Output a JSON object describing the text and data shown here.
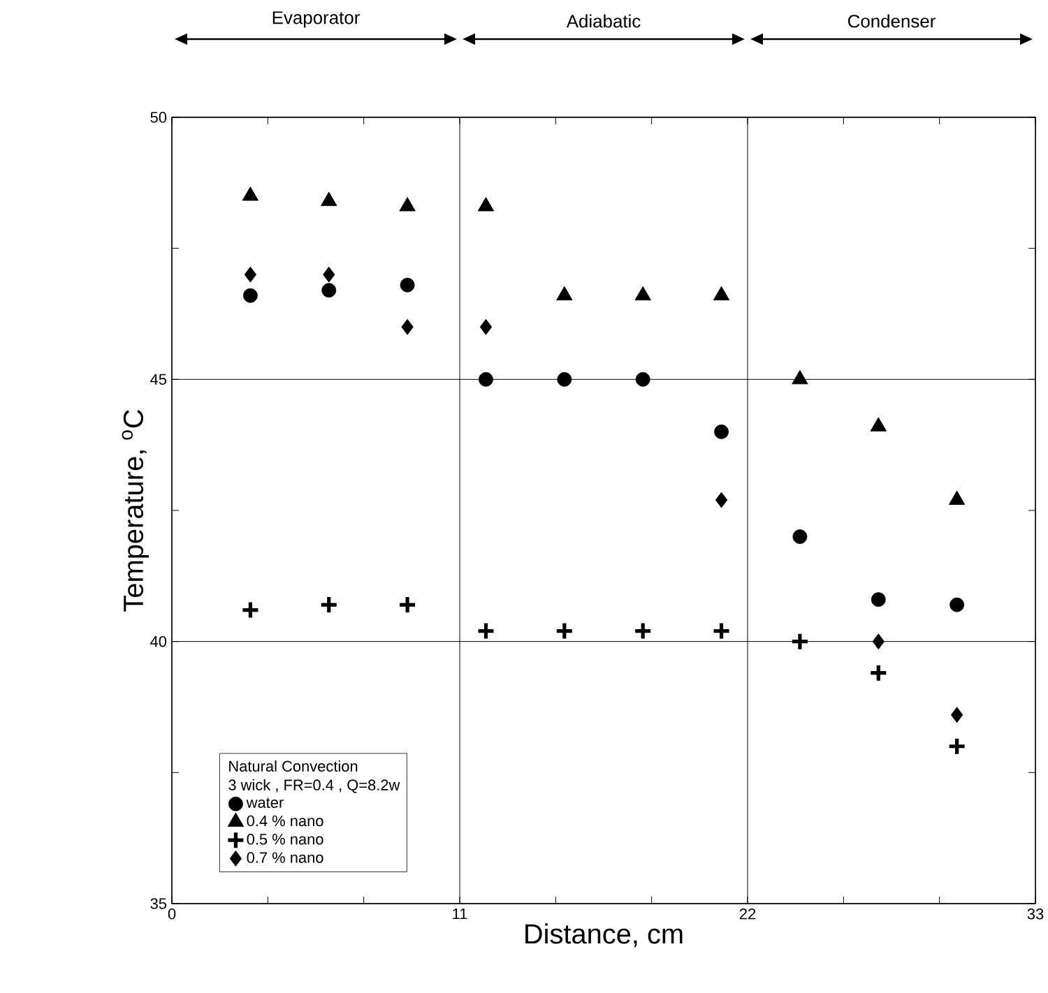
{
  "chart_data": {
    "type": "scatter",
    "xlabel": "Distance, cm",
    "ylabel": "Temperature, $^{o}$C",
    "legend_title": "Natural Convection",
    "annotations": [
      "3 wick , FR=0.4 , Q=8.2w",
      "Evaporator",
      "Adiabatic",
      "Condenser"
    ],
    "x": [
      3,
      6,
      9,
      12,
      15,
      18,
      21,
      24,
      27,
      30
    ],
    "series": [
      {
        "name": "water",
        "color": "#000000",
        "marker": "circle",
        "values": [
          46.6,
          46.7,
          46.8,
          45.0,
          45.0,
          45.0,
          44.0,
          42.0,
          40.8,
          40.7
        ]
      },
      {
        "name": "0.4 % nano",
        "color": "#000000",
        "marker": "triangle",
        "values": [
          48.5,
          48.4,
          48.3,
          48.3,
          46.6,
          46.6,
          46.6,
          45.0,
          44.1,
          42.7
        ]
      },
      {
        "name": "0.5 % nano",
        "color": "#000000",
        "marker": "cross",
        "values": [
          40.6,
          40.7,
          40.7,
          40.2,
          40.2,
          40.2,
          40.2,
          40.0,
          39.4,
          38.0
        ]
      },
      {
        "name": "0.7 % nano",
        "color": "#000000",
        "marker": "diamond",
        "values": [
          47.0,
          47.0,
          46.0,
          46.0,
          null,
          null,
          42.7,
          null,
          40.0,
          38.6
        ]
      }
    ],
    "xlim": [
      0,
      33
    ],
    "ylim": [
      35,
      50
    ],
    "xticks": [
      0,
      {
        "value": 3.667,
        "label": null
      },
      {
        "value": 7.333,
        "label": null
      },
      11,
      {
        "value": 14.667,
        "label": null
      },
      {
        "value": 18.333,
        "label": null
      },
      22,
      {
        "value": 25.667,
        "label": null
      },
      {
        "value": 29.333,
        "label": null
      },
      33
    ],
    "yticks": [
      35,
      {
        "value": 37.5,
        "label": null
      },
      40,
      {
        "value": 42.5,
        "label": null
      },
      45,
      {
        "value": 47.5,
        "label": null
      },
      50
    ],
    "grid": true,
    "legend": "bottom left"
  }
}
